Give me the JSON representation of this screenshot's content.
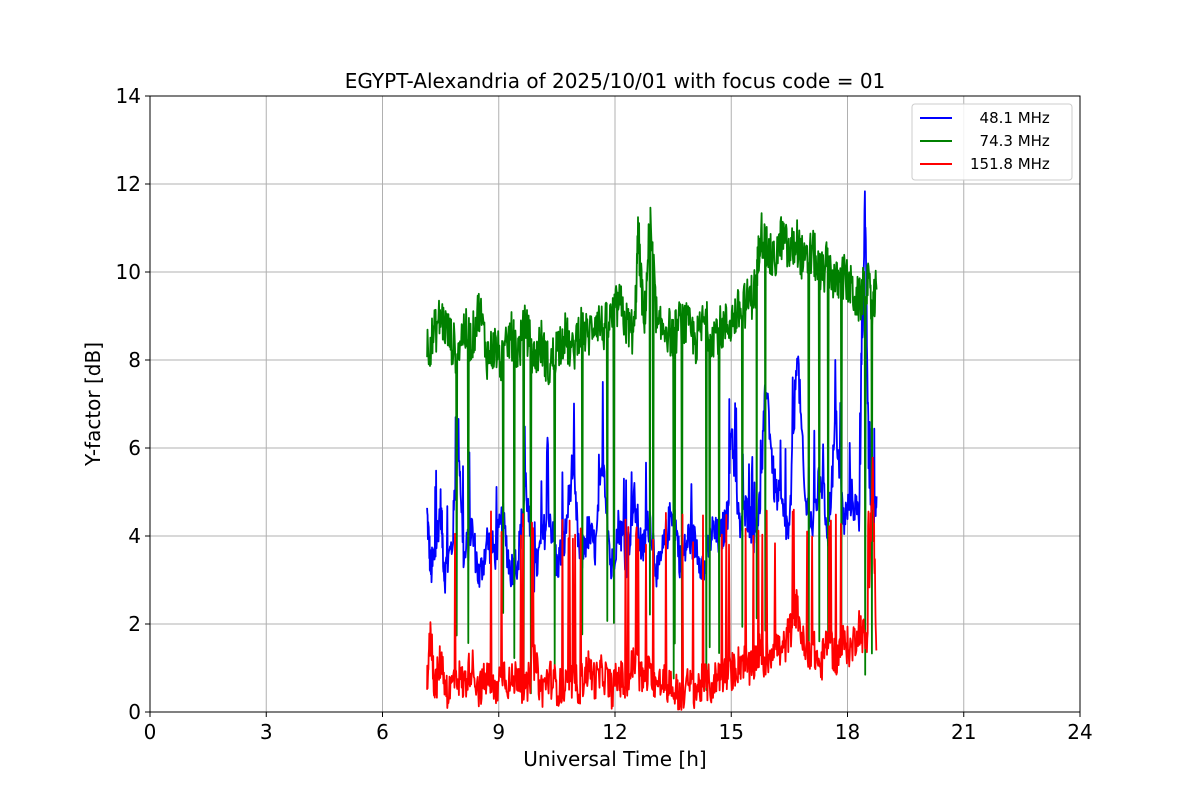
{
  "chart_data": {
    "type": "line",
    "title": "EGYPT-Alexandria of 2025/10/01 with focus code = 01",
    "xlabel": "Universal Time [h]",
    "ylabel": "Y-factor [dB]",
    "xlim": [
      0,
      24
    ],
    "ylim": [
      0,
      14
    ],
    "xticks": [
      0,
      3,
      6,
      9,
      12,
      15,
      18,
      21,
      24
    ],
    "yticks": [
      0,
      2,
      4,
      6,
      8,
      10,
      12,
      14
    ],
    "grid": true,
    "legend_position": "top-right",
    "series": [
      {
        "name": "  48.1 MHz",
        "color": "#0000ff",
        "x": [
          7.15,
          7.25,
          7.35,
          7.5,
          7.6,
          7.8,
          7.95,
          8.1,
          8.3,
          8.5,
          8.7,
          8.9,
          9.1,
          9.3,
          9.5,
          9.7,
          9.9,
          10.1,
          10.3,
          10.5,
          10.7,
          10.9,
          11.1,
          11.3,
          11.5,
          11.7,
          11.9,
          12.1,
          12.3,
          12.5,
          12.7,
          12.9,
          13.1,
          13.3,
          13.5,
          13.7,
          13.9,
          14.1,
          14.3,
          14.5,
          14.7,
          14.9,
          15.0,
          15.2,
          15.4,
          15.6,
          15.75,
          15.9,
          16.1,
          16.3,
          16.5,
          16.7,
          16.9,
          17.1,
          17.3,
          17.5,
          17.7,
          17.9,
          18.1,
          18.3,
          18.45,
          18.55,
          18.65,
          18.75
        ],
        "y": [
          4.5,
          3.2,
          3.6,
          4.7,
          3.1,
          3.8,
          6.5,
          3.4,
          4.2,
          3.0,
          3.9,
          3.6,
          4.4,
          3.2,
          3.5,
          5.2,
          3.0,
          3.8,
          4.6,
          3.3,
          3.9,
          5.6,
          3.4,
          4.1,
          3.7,
          5.8,
          3.2,
          4.3,
          3.5,
          4.8,
          3.6,
          4.4,
          3.1,
          3.9,
          4.7,
          3.3,
          4.0,
          3.8,
          3.2,
          4.1,
          3.9,
          4.4,
          6.6,
          4.2,
          4.6,
          4.0,
          4.8,
          7.6,
          5.2,
          4.6,
          4.0,
          8.4,
          4.8,
          4.2,
          5.4,
          4.1,
          6.6,
          4.3,
          4.9,
          4.4,
          11.7,
          5.4,
          4.6,
          4.9
        ]
      },
      {
        "name": "  74.3 MHz",
        "color": "#008000",
        "x": [
          7.15,
          7.3,
          7.5,
          7.7,
          7.9,
          8.1,
          8.3,
          8.5,
          8.7,
          8.9,
          9.1,
          9.3,
          9.5,
          9.7,
          9.9,
          10.1,
          10.3,
          10.5,
          10.7,
          10.9,
          11.1,
          11.3,
          11.5,
          11.7,
          11.9,
          12.1,
          12.3,
          12.5,
          12.6,
          12.75,
          12.9,
          13.1,
          13.3,
          13.5,
          13.7,
          13.9,
          14.1,
          14.3,
          14.5,
          14.7,
          14.9,
          15.1,
          15.3,
          15.5,
          15.65,
          15.75,
          15.9,
          16.1,
          16.3,
          16.5,
          16.7,
          16.9,
          17.1,
          17.3,
          17.5,
          17.7,
          17.9,
          18.1,
          18.3,
          18.5,
          18.65,
          18.75
        ],
        "y": [
          8.3,
          8.5,
          9.0,
          8.6,
          8.2,
          8.7,
          8.4,
          9.2,
          8.1,
          8.3,
          7.9,
          8.6,
          8.2,
          8.8,
          8.0,
          8.4,
          7.8,
          8.3,
          8.6,
          8.1,
          8.8,
          8.5,
          9.0,
          8.7,
          8.9,
          9.3,
          8.8,
          8.6,
          10.9,
          8.7,
          11.2,
          8.6,
          8.8,
          8.5,
          8.9,
          8.7,
          8.4,
          8.9,
          8.6,
          8.7,
          8.8,
          9.0,
          9.2,
          9.4,
          9.7,
          11.0,
          10.5,
          10.2,
          10.8,
          10.4,
          10.7,
          10.1,
          10.5,
          9.9,
          10.2,
          9.7,
          9.9,
          9.6,
          9.3,
          9.8,
          9.1,
          9.6
        ]
      },
      {
        "name": "151.8 MHz",
        "color": "#ff0000",
        "x": [
          7.15,
          7.25,
          7.35,
          7.5,
          7.7,
          7.9,
          8.1,
          8.3,
          8.5,
          8.7,
          8.9,
          9.1,
          9.3,
          9.5,
          9.7,
          9.9,
          10.1,
          10.3,
          10.5,
          10.7,
          10.9,
          11.1,
          11.3,
          11.5,
          11.7,
          11.9,
          12.1,
          12.3,
          12.5,
          12.7,
          12.9,
          13.1,
          13.3,
          13.5,
          13.7,
          13.9,
          14.1,
          14.3,
          14.5,
          14.7,
          14.9,
          15.1,
          15.3,
          15.5,
          15.7,
          15.9,
          16.1,
          16.3,
          16.5,
          16.7,
          16.9,
          17.1,
          17.3,
          17.5,
          17.7,
          17.9,
          18.1,
          18.3,
          18.5,
          18.65,
          18.75
        ],
        "y": [
          0.8,
          1.8,
          0.5,
          1.2,
          0.4,
          0.9,
          0.6,
          1.1,
          0.5,
          0.8,
          0.4,
          1.0,
          0.6,
          0.9,
          0.4,
          1.2,
          0.5,
          0.8,
          0.6,
          0.5,
          0.7,
          0.6,
          1.0,
          0.7,
          0.9,
          0.5,
          0.8,
          0.6,
          1.2,
          0.7,
          0.9,
          0.6,
          0.7,
          0.5,
          0.4,
          0.6,
          0.5,
          0.7,
          0.6,
          0.9,
          0.8,
          1.0,
          1.2,
          0.9,
          1.4,
          1.1,
          1.6,
          1.3,
          1.8,
          2.4,
          1.3,
          1.5,
          1.0,
          1.7,
          1.2,
          1.6,
          1.4,
          2.0,
          1.5,
          5.4,
          1.4
        ]
      }
    ]
  }
}
